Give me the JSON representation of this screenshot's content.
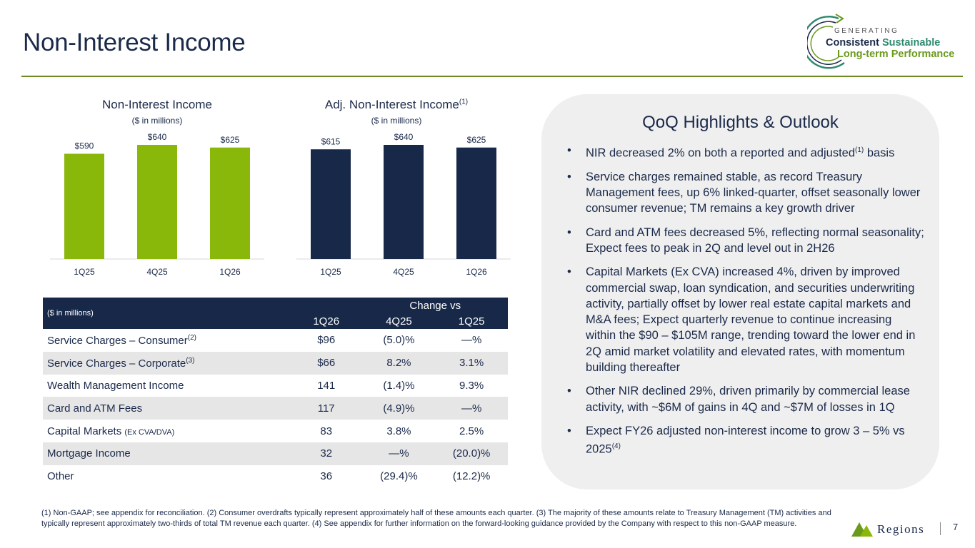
{
  "page": {
    "title": "Non-Interest Income",
    "page_number": "7"
  },
  "logo": {
    "line_top": "GENERATING",
    "line1_a": "Consistent",
    "line1_b": "Sustainable",
    "line2": "Long-term Performance",
    "brand": "Regions"
  },
  "colors": {
    "green_bar": "#8ab80a",
    "navy_bar": "#172849",
    "rule": "#6b8a22"
  },
  "chart_data": [
    {
      "type": "bar",
      "title": "Non-Interest Income",
      "subtitle": "($ in millions)",
      "categories": [
        "1Q25",
        "4Q25",
        "1Q26"
      ],
      "values": [
        590,
        640,
        625
      ],
      "data_labels": [
        "$590",
        "$640",
        "$625"
      ],
      "xlabel": "",
      "ylabel": "",
      "ylim": [
        0,
        640
      ],
      "color": "#8ab80a"
    },
    {
      "type": "bar",
      "title": "Adj. Non-Interest Income",
      "title_sup": "(1)",
      "subtitle": "($ in millions)",
      "categories": [
        "1Q25",
        "4Q25",
        "1Q26"
      ],
      "values": [
        615,
        640,
        625
      ],
      "data_labels": [
        "$615",
        "$640",
        "$625"
      ],
      "xlabel": "",
      "ylabel": "",
      "ylim": [
        0,
        640
      ],
      "color": "#172849"
    }
  ],
  "table": {
    "unit": "($ in millions)",
    "group_header": "Change vs",
    "columns": [
      "1Q26",
      "4Q25",
      "1Q25"
    ],
    "rows": [
      {
        "label": "Service Charges – Consumer",
        "sup": "(2)",
        "note": "",
        "v1": "$96",
        "v2": "(5.0)%",
        "v3": "—%"
      },
      {
        "label": "Service Charges – Corporate",
        "sup": "(3)",
        "note": "",
        "v1": "$66",
        "v2": "8.2%",
        "v3": "3.1%"
      },
      {
        "label": "Wealth Management Income",
        "sup": "",
        "note": "",
        "v1": "141",
        "v2": "(1.4)%",
        "v3": "9.3%"
      },
      {
        "label": "Card and ATM Fees",
        "sup": "",
        "note": "",
        "v1": "117",
        "v2": "(4.9)%",
        "v3": "—%"
      },
      {
        "label": "Capital Markets",
        "sup": "",
        "note": "(Ex CVA/DVA)",
        "v1": "83",
        "v2": "3.8%",
        "v3": "2.5%"
      },
      {
        "label": "Mortgage Income",
        "sup": "",
        "note": "",
        "v1": "32",
        "v2": "—%",
        "v3": "(20.0)%"
      },
      {
        "label": "Other",
        "sup": "",
        "note": "",
        "v1": "36",
        "v2": "(29.4)%",
        "v3": "(12.2)%"
      }
    ]
  },
  "highlights": {
    "title": "QoQ Highlights & Outlook",
    "bullet": "•",
    "items": [
      {
        "text_a": "NIR decreased 2% on both a reported and adjusted",
        "sup": "(1)",
        "text_b": " basis"
      },
      {
        "text_a": "Service charges remained stable, as record Treasury Management fees, up 6% linked-quarter, offset seasonally lower consumer revenue; TM remains a key growth driver",
        "sup": "",
        "text_b": ""
      },
      {
        "text_a": "Card and ATM fees decreased 5%, reflecting normal seasonality; Expect fees to peak in 2Q and level out in 2H26",
        "sup": "",
        "text_b": ""
      },
      {
        "text_a": "Capital Markets (Ex CVA) increased 4%, driven by improved commercial swap, loan syndication, and securities underwriting activity, partially offset by lower real estate capital markets and M&A fees; Expect quarterly revenue to continue increasing within the $90 – $105M range, trending toward the lower end in 2Q amid market volatility and elevated rates, with momentum building thereafter",
        "sup": "",
        "text_b": ""
      },
      {
        "text_a": "Other NIR declined 29%, driven primarily by commercial lease activity, with ~$6M of gains in 4Q and ~$7M of losses in 1Q",
        "sup": "",
        "text_b": ""
      },
      {
        "text_a": "Expect FY26 adjusted non-interest income to grow 3 – 5% vs 2025",
        "sup": "(4)",
        "text_b": ""
      }
    ]
  },
  "footnote": "(1)  Non-GAAP; see appendix for reconciliation. (2) Consumer overdrafts typically represent approximately half of these amounts each quarter. (3) The majority of these amounts relate to Treasury Management (TM) activities and typically represent approximately two-thirds of total TM revenue each quarter. (4) See appendix for further information on the forward-looking guidance provided by the Company with respect to this non-GAAP measure."
}
